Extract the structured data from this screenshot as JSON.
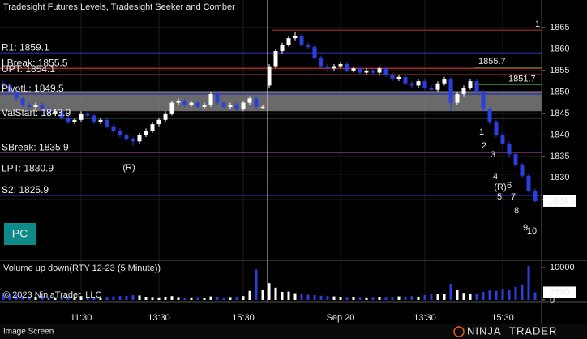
{
  "chart_data": [
    {
      "type": "candlestick",
      "title": "Tradesight Futures Levels, Tradesight Seeker and Comber",
      "categories": [
        null,
        null,
        null,
        null,
        null,
        null,
        null,
        null,
        null,
        null,
        null,
        null,
        "11:30",
        null,
        null,
        null,
        null,
        null,
        null,
        null,
        null,
        null,
        null,
        null,
        "13:30",
        null,
        null,
        null,
        null,
        null,
        null,
        null,
        null,
        null,
        null,
        null,
        null,
        "15:30",
        null,
        null,
        null,
        null,
        null,
        null,
        null,
        null,
        null,
        null,
        null,
        null,
        null,
        null,
        "Sep 20",
        null,
        null,
        null,
        null,
        null,
        null,
        null,
        null,
        null,
        null,
        null,
        null,
        "13:30",
        null,
        null,
        null,
        null,
        null,
        null,
        null,
        null,
        null,
        null,
        null,
        "15:30",
        null,
        null,
        null,
        null,
        null
      ],
      "open": [
        1852,
        1851.5,
        1850,
        1848.5,
        1847,
        1846.5,
        1847,
        1846,
        1845,
        1845.5,
        1844,
        1843,
        1843.5,
        1845,
        1844.5,
        1843,
        1843.5,
        1842,
        1841,
        1840,
        1839,
        1838.5,
        1840,
        1841,
        1842.5,
        1843.5,
        1845,
        1847.5,
        1848,
        1847,
        1847.5,
        1846.5,
        1847,
        1849.5,
        1847.5,
        1846.5,
        1847,
        1846,
        1847.5,
        1848.5,
        1846.5,
        1851.5,
        1856,
        1859.5,
        1861,
        1862.5,
        1863,
        1861,
        1860.5,
        1858,
        1856,
        1855.5,
        1856,
        1856.5,
        1855,
        1855.5,
        1854.5,
        1855,
        1854.5,
        1855.5,
        1854,
        1853,
        1853.5,
        1852,
        1851.5,
        1852.5,
        1851,
        1850.5,
        1852,
        1853,
        1847.5,
        1849.5,
        1851,
        1852.5,
        1850,
        1846,
        1843,
        1840,
        1838,
        1835.5,
        1833,
        1830.5,
        1827
      ],
      "high": [
        1852.5,
        1852,
        1850.5,
        1849,
        1847.5,
        1847.5,
        1847.5,
        1846.5,
        1846,
        1846,
        1844.5,
        1844,
        1845.5,
        1845.5,
        1845,
        1844,
        1844,
        1842.5,
        1841.5,
        1840.5,
        1839.5,
        1840.5,
        1841.5,
        1843,
        1844,
        1845.5,
        1848,
        1848.5,
        1848.5,
        1848,
        1848,
        1847.5,
        1850,
        1850,
        1848,
        1847.5,
        1847.5,
        1848,
        1849,
        1849,
        1847,
        1856.5,
        1860,
        1861.5,
        1863,
        1864,
        1863.5,
        1861.5,
        1861,
        1858.5,
        1856.5,
        1856.5,
        1857,
        1857,
        1856,
        1856,
        1855.5,
        1855.5,
        1856,
        1856,
        1854.5,
        1854,
        1854,
        1852.5,
        1853,
        1853,
        1851.5,
        1852.5,
        1853.5,
        1853.5,
        1850,
        1851.5,
        1853,
        1853,
        1850.5,
        1846.5,
        1843.5,
        1840.5,
        1838.5,
        1836,
        1833.5,
        1831,
        1827.5
      ],
      "low": [
        1851,
        1849.5,
        1848,
        1846.5,
        1846,
        1846,
        1845.5,
        1844.5,
        1844.5,
        1843.5,
        1842.5,
        1842.5,
        1843,
        1844,
        1842.5,
        1842.5,
        1841.5,
        1840.5,
        1839.5,
        1838.5,
        1837.5,
        1838,
        1839.5,
        1840.5,
        1842,
        1843,
        1844.5,
        1847,
        1846.5,
        1846.5,
        1846,
        1846,
        1846.5,
        1847,
        1846,
        1846,
        1845.5,
        1845.5,
        1847,
        1846,
        1846,
        1851,
        1855.5,
        1859,
        1860.5,
        1862,
        1860.5,
        1860,
        1857.5,
        1855.5,
        1855,
        1855,
        1855.5,
        1854.5,
        1854.5,
        1854,
        1854,
        1854,
        1854,
        1853.5,
        1852.5,
        1852.5,
        1851.5,
        1851,
        1851,
        1850.5,
        1850,
        1850,
        1851.5,
        1845.5,
        1847,
        1849,
        1850.5,
        1849.5,
        1845.5,
        1842.5,
        1839.5,
        1837.5,
        1835,
        1832.5,
        1830,
        1826.5,
        1824.3
      ],
      "close": [
        1851.5,
        1850,
        1848.5,
        1847,
        1846.5,
        1847,
        1846,
        1845,
        1845.5,
        1844,
        1843,
        1843.5,
        1845,
        1844.5,
        1843,
        1843.5,
        1842,
        1841,
        1840,
        1839,
        1838.5,
        1840,
        1841,
        1842.5,
        1843.5,
        1845,
        1847.5,
        1848,
        1847,
        1847.5,
        1846.5,
        1847,
        1849.5,
        1847.5,
        1846.5,
        1847,
        1846,
        1847.5,
        1848.5,
        1846.5,
        1846.5,
        1856,
        1859.5,
        1861,
        1862.5,
        1863,
        1861,
        1860.5,
        1858,
        1856,
        1855.5,
        1856,
        1856.5,
        1855,
        1855.5,
        1854.5,
        1855,
        1854.5,
        1855.5,
        1854,
        1853,
        1853.5,
        1852,
        1851.5,
        1852.5,
        1851,
        1850.5,
        1852,
        1853,
        1847.5,
        1849.5,
        1851,
        1852.5,
        1850,
        1846,
        1843,
        1840,
        1838,
        1835.5,
        1833,
        1830.5,
        1827,
        1824.6
      ],
      "up_color": "#ffffff",
      "down_color": "#2b3ee0",
      "ylim": [
        1811,
        1871.4
      ],
      "yticks": [
        1825,
        1830,
        1835,
        1840,
        1845,
        1850,
        1855,
        1860,
        1865
      ],
      "grid": true,
      "band": [
        1845.5,
        1850.2
      ],
      "band_color": "#7d7d7d",
      "levels": [
        {
          "label": "R1: 1859.1",
          "value": 1859.1,
          "color": "#2b2bb0"
        },
        {
          "label": "LBreak: 1855.5",
          "value": 1855.5,
          "color": "#c43030"
        },
        {
          "label": "UPT: 1854.1",
          "value": 1854.1,
          "color": "#5a1e1e"
        },
        {
          "label": "PivotL: 1849.5",
          "value": 1849.5,
          "color": "#2b2bb0"
        },
        {
          "label": "ValStart: 1843.9",
          "value": 1843.9,
          "color": "#4fd8a0"
        },
        {
          "label": "SBreak: 1835.9",
          "value": 1835.9,
          "color": "#9b3a9b"
        },
        {
          "label": "LPT: 1830.9",
          "value": 1830.9,
          "color": "#6e2a6e"
        },
        {
          "label": "S2: 1825.9",
          "value": 1825.9,
          "color": "#2b2bb0"
        }
      ],
      "short_lines": [
        {
          "value": 1864.4,
          "label": "1",
          "color": "#c43030",
          "label_color": "#f0902a"
        },
        {
          "value": 1855.7,
          "color": "#2e8b2e",
          "label_color": "#3aa83a"
        },
        {
          "value": 1851.7,
          "color": "#2e8b2e",
          "label_color": "#3aa83a"
        }
      ],
      "annotations": [
        {
          "text": "(R)",
          "color": "#e03030"
        },
        {
          "text": "1",
          "color": "#3fe0d0"
        },
        {
          "text": "2",
          "color": "#3fe0d0"
        },
        {
          "text": "3",
          "color": "#3fe0d0"
        },
        {
          "text": "4",
          "color": "#3fe0d0"
        },
        {
          "text": "(R)",
          "color": "#e03030"
        },
        {
          "text": "5",
          "color": "#3fe0d0"
        },
        {
          "text": "6",
          "color": "#3fe0d0"
        },
        {
          "text": "7",
          "color": "#3fe0d0"
        },
        {
          "text": "8",
          "color": "#3fe0d0"
        },
        {
          "text": "9",
          "color": "#3fe0d0"
        },
        {
          "text": "10",
          "color": "#3fe0d0"
        }
      ]
    },
    {
      "type": "bar",
      "title": "Volume up down(RTY 12-23 (5 Minute))",
      "values": [
        2200,
        1800,
        1500,
        1300,
        1100,
        1000,
        1200,
        900,
        800,
        1000,
        1100,
        900,
        1200,
        800,
        900,
        700,
        1000,
        1100,
        1200,
        1300,
        1500,
        1400,
        1000,
        900,
        800,
        1000,
        1200,
        900,
        700,
        800,
        900,
        700,
        1100,
        1000,
        800,
        900,
        1000,
        1200,
        2800,
        9400,
        3000,
        5200,
        3800,
        2500,
        2600,
        2100,
        1900,
        1600,
        1500,
        1300,
        1200,
        1100,
        1000,
        900,
        1000,
        900,
        800,
        900,
        1000,
        900,
        1000,
        1100,
        1000,
        1200,
        1000,
        1500,
        1800,
        2000,
        1900,
        5000,
        3000,
        2200,
        2000,
        1800,
        2500,
        3000,
        2800,
        3500,
        3200,
        4000,
        4800,
        10500,
        2390
      ],
      "ylim": [
        0,
        12000
      ],
      "yticks": [
        0,
        10000
      ]
    }
  ],
  "copyright": "© 2023 NinjaTrader, LLC",
  "button": "PC",
  "footer": "Image Screen",
  "logo": {
    "left": "NINJA",
    "right": "TRADER"
  }
}
